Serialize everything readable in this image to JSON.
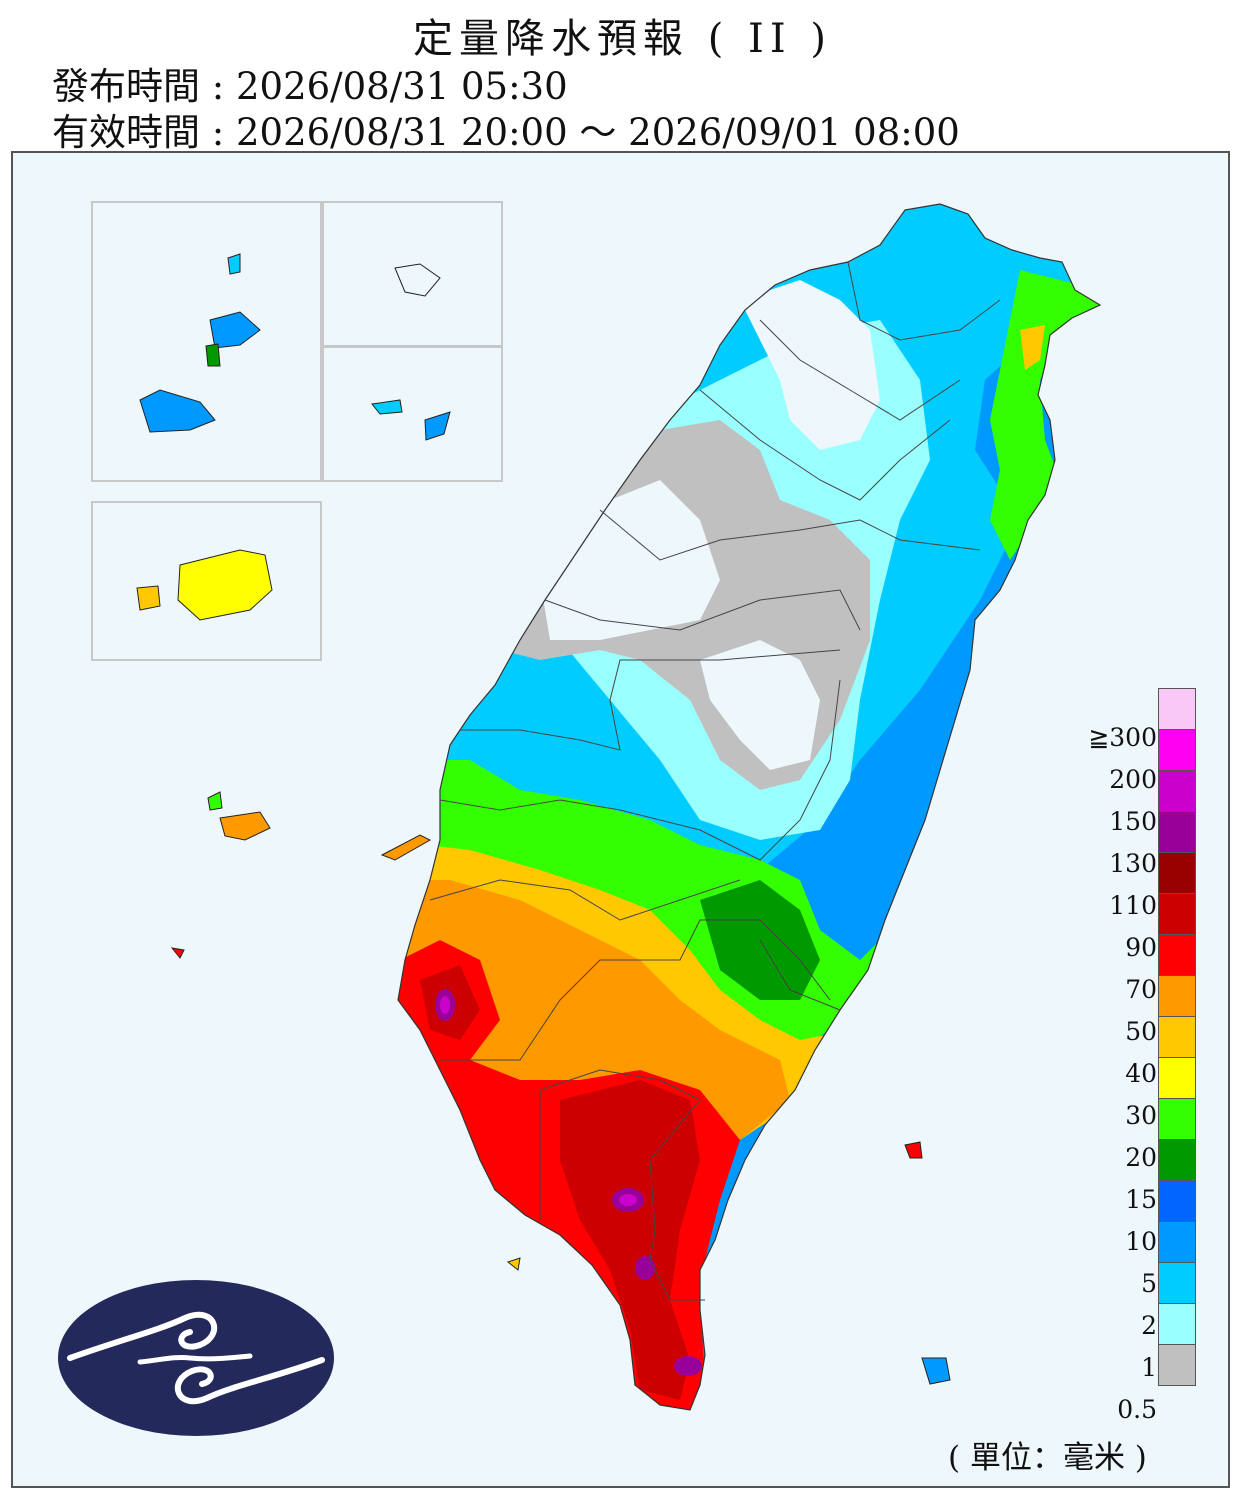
{
  "header": {
    "title": "定量降水預報 ( II )",
    "issued": "發布時間 : 2026/08/31 05:30",
    "valid": "有效時間 : 2026/08/31 20:00 ～ 2026/09/01 08:00"
  },
  "legend": {
    "unit_note": "( 單位：毫米 )",
    "levels": [
      {
        "label": "≧300",
        "color": "#f9c8f6"
      },
      {
        "label": "200",
        "color": "#ff00f0"
      },
      {
        "label": "150",
        "color": "#cc00cc"
      },
      {
        "label": "130",
        "color": "#990099"
      },
      {
        "label": "110",
        "color": "#990000"
      },
      {
        "label": "90",
        "color": "#cc0000"
      },
      {
        "label": "70",
        "color": "#ff0000"
      },
      {
        "label": "50",
        "color": "#ff9900"
      },
      {
        "label": "40",
        "color": "#ffc800"
      },
      {
        "label": "30",
        "color": "#ffff00"
      },
      {
        "label": "20",
        "color": "#33ff00"
      },
      {
        "label": "15",
        "color": "#009900"
      },
      {
        "label": "10",
        "color": "#0066ff"
      },
      {
        "label": "5",
        "color": "#0099ff"
      },
      {
        "label": "2",
        "color": "#00ccff"
      },
      {
        "label": "1",
        "color": "#99ffff"
      },
      {
        "label": "0.5",
        "color": "#c0c0c0"
      }
    ]
  },
  "colors": {
    "sea": "#eef7fc",
    "logo": "#23295a"
  }
}
